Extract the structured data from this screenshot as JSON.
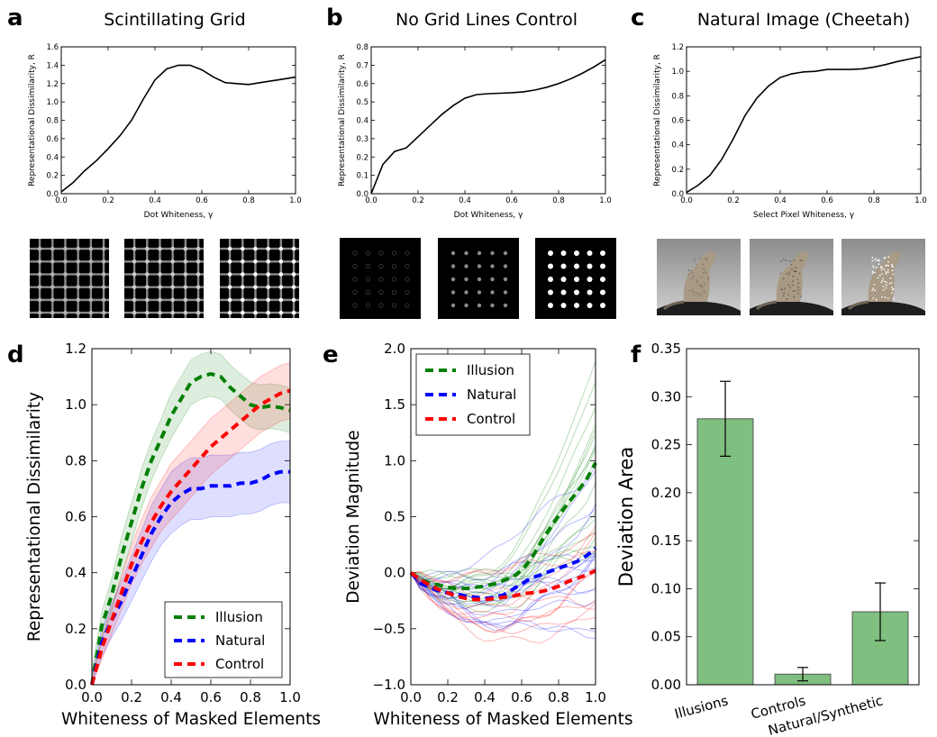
{
  "panels": {
    "a": {
      "letter": "a",
      "title": "Scintillating Grid"
    },
    "b": {
      "letter": "b",
      "title": "No Grid Lines Control"
    },
    "c": {
      "letter": "c",
      "title": "Natural Image (Cheetah)"
    },
    "d": {
      "letter": "d"
    },
    "e": {
      "letter": "e"
    },
    "f": {
      "letter": "f"
    }
  },
  "colors": {
    "illusion": "#007f00",
    "natural": "#0000ff",
    "control": "#ff0000",
    "bar": "#7fbf7f",
    "bar_edge": "#555555"
  },
  "chart_data": [
    {
      "id": "a",
      "type": "line",
      "xlabel": "Dot Whiteness, γ",
      "ylabel": "Representational Dissimilarity, R",
      "xlim": [
        0,
        1
      ],
      "ylim": [
        0,
        1.6
      ],
      "xticks": [
        "0.0",
        "0.2",
        "0.4",
        "0.6",
        "0.8",
        "1.0"
      ],
      "yticks": [
        "0.0",
        "0.2",
        "0.4",
        "0.6",
        "0.8",
        "1.0",
        "1.2",
        "1.4",
        "1.6"
      ],
      "x": [
        0,
        0.05,
        0.1,
        0.15,
        0.2,
        0.25,
        0.3,
        0.35,
        0.4,
        0.45,
        0.5,
        0.55,
        0.6,
        0.65,
        0.7,
        0.75,
        0.8,
        0.85,
        0.9,
        0.95,
        1.0
      ],
      "y": [
        0.02,
        0.12,
        0.25,
        0.36,
        0.49,
        0.63,
        0.8,
        1.03,
        1.24,
        1.36,
        1.4,
        1.4,
        1.35,
        1.27,
        1.21,
        1.2,
        1.19,
        1.21,
        1.23,
        1.25,
        1.27
      ]
    },
    {
      "id": "b",
      "type": "line",
      "xlabel": "Dot Whiteness, γ",
      "ylabel": "Representational Dissimilarity, R",
      "xlim": [
        0,
        1
      ],
      "ylim": [
        0,
        0.8
      ],
      "xticks": [
        "0.0",
        "0.2",
        "0.4",
        "0.6",
        "0.8",
        "1.0"
      ],
      "yticks": [
        "0.0",
        "0.1",
        "0.2",
        "0.3",
        "0.4",
        "0.5",
        "0.6",
        "0.7",
        "0.8"
      ],
      "x": [
        0,
        0.05,
        0.1,
        0.15,
        0.2,
        0.25,
        0.3,
        0.35,
        0.4,
        0.45,
        0.5,
        0.55,
        0.6,
        0.65,
        0.7,
        0.75,
        0.8,
        0.85,
        0.9,
        0.95,
        1.0
      ],
      "y": [
        0.0,
        0.16,
        0.23,
        0.25,
        0.31,
        0.37,
        0.43,
        0.48,
        0.52,
        0.54,
        0.545,
        0.547,
        0.55,
        0.555,
        0.565,
        0.58,
        0.6,
        0.625,
        0.655,
        0.69,
        0.73
      ]
    },
    {
      "id": "c",
      "type": "line",
      "xlabel": "Select Pixel Whiteness, γ",
      "ylabel": "Representational Dissimilarity, R",
      "xlim": [
        0,
        1
      ],
      "ylim": [
        0,
        1.2
      ],
      "xticks": [
        "0.0",
        "0.2",
        "0.4",
        "0.6",
        "0.8",
        "1.0"
      ],
      "yticks": [
        "0.0",
        "0.2",
        "0.4",
        "0.6",
        "0.8",
        "1.0",
        "1.2"
      ],
      "x": [
        0,
        0.05,
        0.1,
        0.15,
        0.2,
        0.25,
        0.3,
        0.35,
        0.4,
        0.45,
        0.5,
        0.55,
        0.6,
        0.65,
        0.7,
        0.75,
        0.8,
        0.85,
        0.9,
        0.95,
        1.0
      ],
      "y": [
        0.01,
        0.07,
        0.15,
        0.28,
        0.45,
        0.64,
        0.78,
        0.88,
        0.95,
        0.98,
        0.995,
        1.0,
        1.015,
        1.015,
        1.015,
        1.02,
        1.035,
        1.055,
        1.08,
        1.1,
        1.12
      ]
    },
    {
      "id": "d",
      "type": "line",
      "xlabel": "Whiteness of Masked Elements",
      "ylabel": "Representational Dissimilarity",
      "xlim": [
        0,
        1
      ],
      "ylim": [
        0,
        1.2
      ],
      "xticks": [
        "0.0",
        "0.2",
        "0.4",
        "0.6",
        "0.8",
        "1.0"
      ],
      "yticks": [
        "0.0",
        "0.2",
        "0.4",
        "0.6",
        "0.8",
        "1.0",
        "1.2"
      ],
      "legend": "lower-right",
      "x": [
        0,
        0.05,
        0.1,
        0.15,
        0.2,
        0.25,
        0.3,
        0.35,
        0.4,
        0.45,
        0.5,
        0.55,
        0.6,
        0.65,
        0.7,
        0.75,
        0.8,
        0.85,
        0.9,
        0.95,
        1.0
      ],
      "series": [
        {
          "name": "Illusion",
          "color": "illusion",
          "values": [
            0.0,
            0.21,
            0.32,
            0.46,
            0.58,
            0.7,
            0.8,
            0.88,
            0.96,
            1.02,
            1.08,
            1.1,
            1.11,
            1.1,
            1.06,
            1.03,
            1.0,
            0.99,
            0.995,
            0.99,
            0.98
          ],
          "band": [
            0.05,
            0.05,
            0.06,
            0.07,
            0.07,
            0.07,
            0.07,
            0.07,
            0.08,
            0.08,
            0.08,
            0.08,
            0.08,
            0.08,
            0.08,
            0.08,
            0.08,
            0.08,
            0.08,
            0.08,
            0.08
          ]
        },
        {
          "name": "Natural",
          "color": "natural",
          "values": [
            0.0,
            0.15,
            0.23,
            0.3,
            0.38,
            0.46,
            0.54,
            0.6,
            0.65,
            0.68,
            0.7,
            0.7,
            0.71,
            0.71,
            0.71,
            0.72,
            0.72,
            0.73,
            0.75,
            0.76,
            0.76
          ],
          "band": [
            0.03,
            0.05,
            0.06,
            0.07,
            0.08,
            0.09,
            0.1,
            0.1,
            0.11,
            0.11,
            0.11,
            0.11,
            0.11,
            0.11,
            0.11,
            0.11,
            0.11,
            0.11,
            0.11,
            0.11,
            0.11
          ]
        },
        {
          "name": "Control",
          "color": "control",
          "values": [
            0.0,
            0.13,
            0.23,
            0.33,
            0.43,
            0.51,
            0.58,
            0.64,
            0.69,
            0.73,
            0.77,
            0.81,
            0.85,
            0.88,
            0.91,
            0.94,
            0.97,
            1.0,
            1.02,
            1.04,
            1.05
          ],
          "band": [
            0.02,
            0.04,
            0.05,
            0.06,
            0.07,
            0.08,
            0.09,
            0.09,
            0.1,
            0.1,
            0.1,
            0.1,
            0.1,
            0.1,
            0.1,
            0.1,
            0.1,
            0.1,
            0.1,
            0.1,
            0.1
          ]
        }
      ]
    },
    {
      "id": "e",
      "type": "line",
      "xlabel": "Whiteness of Masked Elements",
      "ylabel": "Deviation Magnitude",
      "xlim": [
        0,
        1
      ],
      "ylim": [
        -1.0,
        2.0
      ],
      "xticks": [
        "0.0",
        "0.2",
        "0.4",
        "0.6",
        "0.8",
        "1.0"
      ],
      "yticks": [
        "−1.0",
        "−0.5",
        "0.0",
        "0.5",
        "1.0",
        "1.5",
        "2.0"
      ],
      "legend": "top-left",
      "x": [
        0,
        0.05,
        0.1,
        0.15,
        0.2,
        0.25,
        0.3,
        0.35,
        0.4,
        0.45,
        0.5,
        0.55,
        0.6,
        0.65,
        0.7,
        0.75,
        0.8,
        0.85,
        0.9,
        0.95,
        1.0
      ],
      "series": [
        {
          "name": "Illusion",
          "color": "illusion",
          "values": [
            0.0,
            -0.06,
            -0.09,
            -0.11,
            -0.13,
            -0.14,
            -0.14,
            -0.13,
            -0.12,
            -0.1,
            -0.07,
            -0.04,
            0.02,
            0.12,
            0.26,
            0.39,
            0.51,
            0.62,
            0.72,
            0.83,
            0.98
          ]
        },
        {
          "name": "Natural",
          "color": "natural",
          "values": [
            0.0,
            -0.09,
            -0.13,
            -0.16,
            -0.18,
            -0.19,
            -0.21,
            -0.22,
            -0.23,
            -0.22,
            -0.2,
            -0.15,
            -0.1,
            -0.05,
            -0.02,
            0.01,
            0.04,
            0.07,
            0.1,
            0.15,
            0.22
          ]
        },
        {
          "name": "Control",
          "color": "control",
          "values": [
            0.0,
            -0.06,
            -0.11,
            -0.15,
            -0.18,
            -0.21,
            -0.23,
            -0.24,
            -0.24,
            -0.23,
            -0.22,
            -0.21,
            -0.19,
            -0.18,
            -0.17,
            -0.15,
            -0.12,
            -0.08,
            -0.05,
            -0.02,
            0.02
          ]
        }
      ]
    },
    {
      "id": "f",
      "type": "bar",
      "ylabel": "Deviation Area",
      "ylim": [
        0,
        0.35
      ],
      "yticks": [
        "0.00",
        "0.05",
        "0.10",
        "0.15",
        "0.20",
        "0.25",
        "0.30",
        "0.35"
      ],
      "categories": [
        "Illusions",
        "Controls",
        "Natural/Synthetic"
      ],
      "values": [
        0.277,
        0.011,
        0.076
      ],
      "errors": [
        0.039,
        0.007,
        0.03
      ]
    }
  ]
}
